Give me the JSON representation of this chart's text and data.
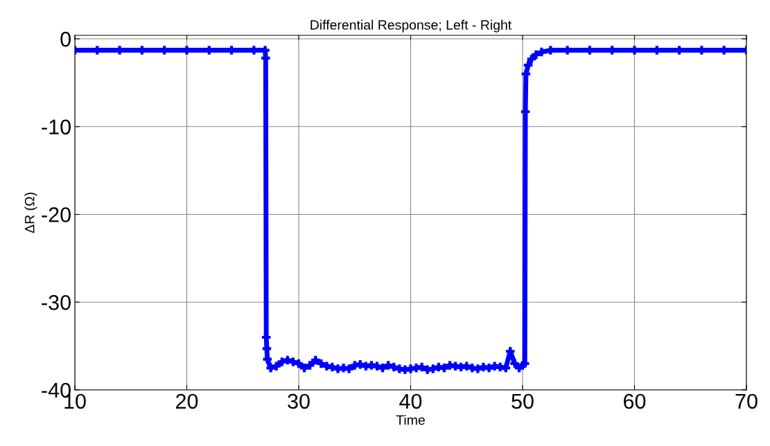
{
  "chart_data": {
    "type": "line",
    "title": "Differential Response; Left - Right",
    "xlabel": "Time",
    "ylabel": "ΔR (Ω)",
    "xlim": [
      10,
      70
    ],
    "ylim": [
      -40,
      0.4
    ],
    "xticks": [
      10,
      20,
      30,
      40,
      50,
      60,
      70
    ],
    "yticks": [
      -40,
      -30,
      -20,
      -10,
      0
    ],
    "grid": true,
    "marker": "cross",
    "line_style": "solid",
    "series": [
      {
        "color": "#0000ff",
        "x": [
          10,
          12,
          14,
          16,
          18,
          20,
          22,
          24,
          26,
          27.0,
          27.05,
          27.1,
          27.15,
          27.2,
          27.5,
          28,
          28.5,
          29,
          29.5,
          30,
          30.5,
          31,
          31.5,
          32,
          32.5,
          33,
          33.5,
          34,
          34.5,
          35,
          35.5,
          36,
          36.5,
          37,
          37.5,
          38,
          38.5,
          39,
          39.5,
          40,
          40.5,
          41,
          41.5,
          42,
          42.5,
          43,
          43.5,
          44,
          44.5,
          45,
          45.5,
          46,
          46.5,
          47,
          47.5,
          48,
          48.5,
          48.9,
          49.3,
          49.7,
          50.0,
          50.2,
          50.25,
          50.3,
          50.5,
          50.8,
          51.2,
          51.7,
          52.5,
          54,
          56,
          58,
          60,
          62,
          64,
          66,
          68,
          70
        ],
        "values": [
          -1.3,
          -1.3,
          -1.3,
          -1.3,
          -1.3,
          -1.3,
          -1.3,
          -1.3,
          -1.3,
          -1.3,
          -2.2,
          -34.0,
          -35.3,
          -36.5,
          -37.5,
          -37.3,
          -36.8,
          -36.6,
          -36.8,
          -37.0,
          -37.5,
          -37.2,
          -36.6,
          -37.0,
          -37.3,
          -37.4,
          -37.6,
          -37.5,
          -37.6,
          -37.2,
          -37.1,
          -37.3,
          -37.2,
          -37.3,
          -37.5,
          -37.2,
          -37.4,
          -37.6,
          -37.7,
          -37.6,
          -37.5,
          -37.4,
          -37.7,
          -37.6,
          -37.4,
          -37.5,
          -37.2,
          -37.3,
          -37.4,
          -37.3,
          -37.5,
          -37.6,
          -37.4,
          -37.5,
          -37.3,
          -37.4,
          -37.5,
          -35.6,
          -37.0,
          -37.5,
          -37.2,
          -37.0,
          -8.3,
          -4.0,
          -3.0,
          -2.3,
          -1.8,
          -1.5,
          -1.3,
          -1.3,
          -1.3,
          -1.3,
          -1.3,
          -1.3,
          -1.3,
          -1.3,
          -1.3,
          -1.3
        ]
      }
    ]
  }
}
